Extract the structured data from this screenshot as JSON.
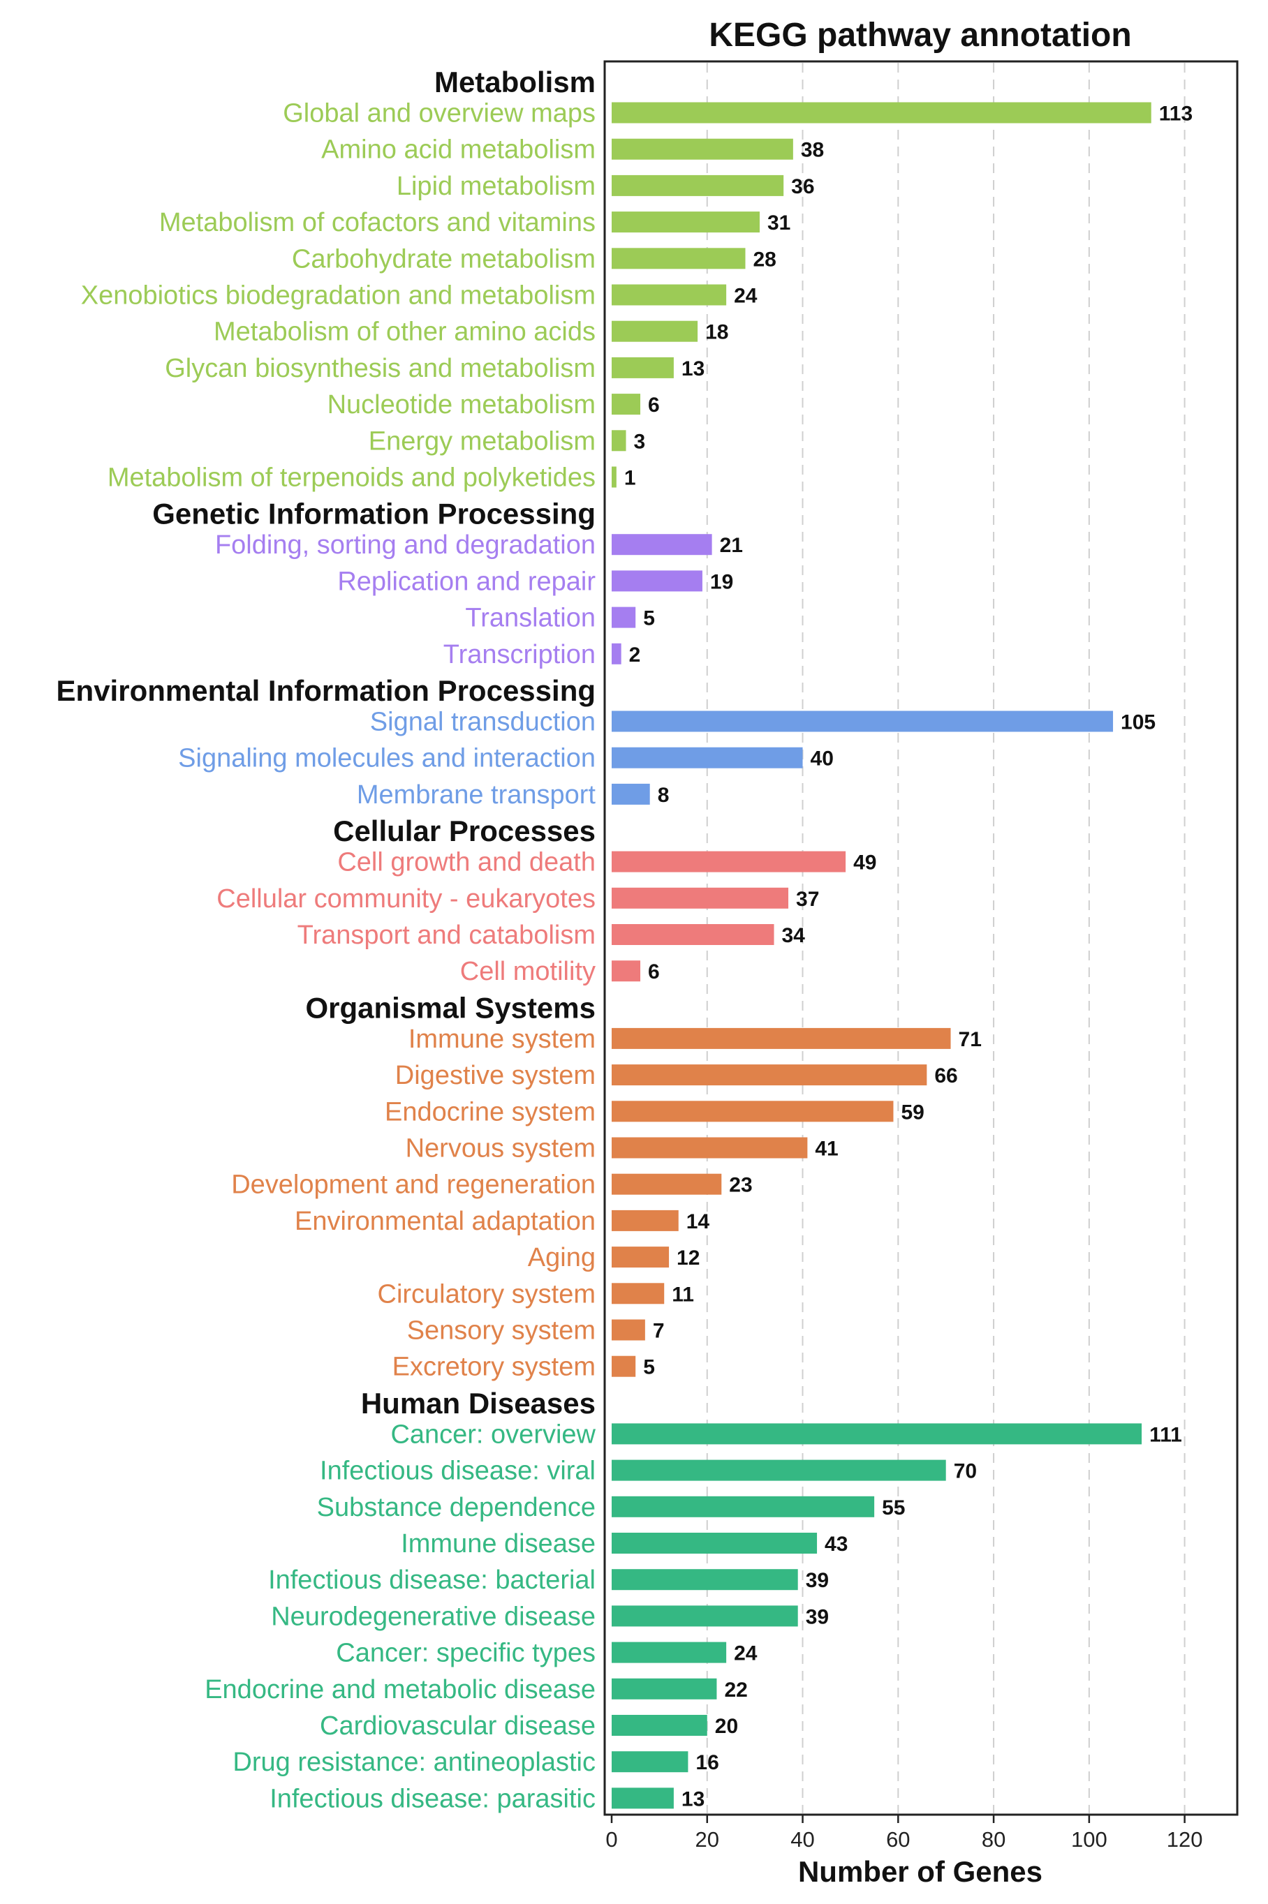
{
  "chart_data": {
    "type": "bar",
    "orientation": "horizontal",
    "title": "KEGG pathway annotation",
    "xlabel": "Number of Genes",
    "xlim": [
      0,
      130
    ],
    "xticks": [
      0,
      20,
      40,
      60,
      80,
      100,
      120
    ],
    "grid": "vertical dashed",
    "groups": [
      {
        "name": "Metabolism",
        "color": "#9CCB56",
        "categories": [
          "Global and overview maps",
          "Amino acid metabolism",
          "Lipid metabolism",
          "Metabolism of cofactors and vitamins",
          "Carbohydrate metabolism",
          "Xenobiotics biodegradation and metabolism",
          "Metabolism of other amino acids",
          "Glycan biosynthesis and metabolism",
          "Nucleotide metabolism",
          "Energy metabolism",
          "Metabolism of terpenoids and polyketides"
        ],
        "values": [
          113,
          38,
          36,
          31,
          28,
          24,
          18,
          13,
          6,
          3,
          1
        ]
      },
      {
        "name": "Genetic Information Processing",
        "color": "#A57EF0",
        "categories": [
          "Folding, sorting and degradation",
          "Replication and repair",
          "Translation",
          "Transcription"
        ],
        "values": [
          21,
          19,
          5,
          2
        ]
      },
      {
        "name": "Environmental Information Processing",
        "color": "#6F9DE6",
        "categories": [
          "Signal transduction",
          "Signaling molecules and interaction",
          "Membrane transport"
        ],
        "values": [
          105,
          40,
          8
        ]
      },
      {
        "name": "Cellular Processes",
        "color": "#EE7B7B",
        "categories": [
          "Cell growth and death",
          "Cellular community - eukaryotes",
          "Transport and catabolism",
          "Cell motility"
        ],
        "values": [
          49,
          37,
          34,
          6
        ]
      },
      {
        "name": "Organismal Systems",
        "color": "#E0824A",
        "categories": [
          "Immune system",
          "Digestive system",
          "Endocrine system",
          "Nervous system",
          "Development and regeneration",
          "Environmental adaptation",
          "Aging",
          "Circulatory system",
          "Sensory system",
          "Excretory system"
        ],
        "values": [
          71,
          66,
          59,
          41,
          23,
          14,
          12,
          11,
          7,
          5
        ]
      },
      {
        "name": "Human Diseases",
        "color": "#35B883",
        "categories": [
          "Cancer: overview",
          "Infectious disease: viral",
          "Substance dependence",
          "Immune disease",
          "Infectious disease: bacterial",
          "Neurodegenerative disease",
          "Cancer: specific types",
          "Endocrine and metabolic disease",
          "Cardiovascular disease",
          "Drug resistance: antineoplastic",
          "Infectious disease: parasitic"
        ],
        "values": [
          111,
          70,
          55,
          43,
          39,
          39,
          24,
          22,
          20,
          16,
          13
        ]
      }
    ]
  }
}
